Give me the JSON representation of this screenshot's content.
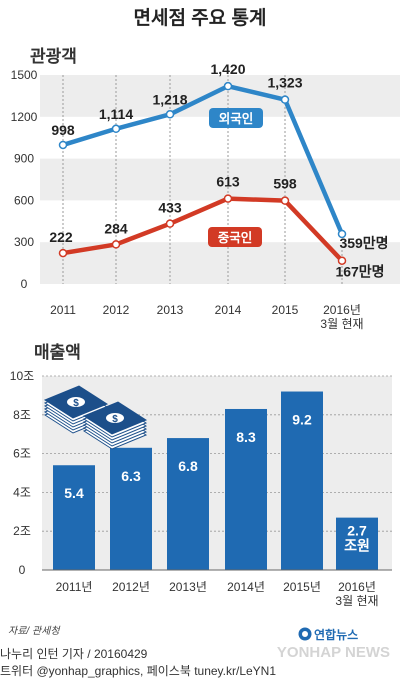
{
  "title": "면세점 주요 통계",
  "colors": {
    "blue": "#2e86c8",
    "red": "#d23a25",
    "bar": "#1f6ab2",
    "band": "#ededed",
    "grid": "#9a9a9a"
  },
  "chart_data": [
    {
      "type": "line",
      "title": "관광객",
      "categories": [
        "2011",
        "2012",
        "2013",
        "2014",
        "2015",
        "2016년\n3월 현재"
      ],
      "y_ticks": [
        "1500",
        "1200",
        "900",
        "600",
        "300",
        "0"
      ],
      "ylim": [
        0,
        1500
      ],
      "series": [
        {
          "name": "외국인",
          "color": "#2e86c8",
          "values": [
            998,
            1114,
            1218,
            1420,
            1323,
            359
          ],
          "labels": [
            "998",
            "1,114",
            "1,218",
            "1,420",
            "1,323",
            "359만명"
          ]
        },
        {
          "name": "중국인",
          "color": "#d23a25",
          "values": [
            222,
            284,
            433,
            613,
            598,
            167
          ],
          "labels": [
            "222",
            "284",
            "433",
            "613",
            "598",
            "167만명"
          ]
        }
      ]
    },
    {
      "type": "bar",
      "title": "매출액",
      "categories": [
        "2011년",
        "2012년",
        "2013년",
        "2014년",
        "2015년",
        "2016년\n3월 현재"
      ],
      "values": [
        5.4,
        6.3,
        6.8,
        8.3,
        9.2,
        2.7
      ],
      "value_labels": [
        "5.4",
        "6.3",
        "6.8",
        "8.3",
        "9.2",
        "2.7\n조원"
      ],
      "y_ticks": [
        "10조",
        "8조",
        "6조",
        "4조",
        "2조",
        "0"
      ],
      "ylim": [
        0,
        10
      ]
    }
  ],
  "footer": {
    "source": "자료/ 관세청",
    "credit": "나누리 인턴 기자 / 20160429",
    "social": "트위터 @yonhap_graphics, 페이스북 tuney.kr/LeYN1",
    "logo_text": "연합뉴스",
    "watermark": "YONHAP NEWS"
  }
}
